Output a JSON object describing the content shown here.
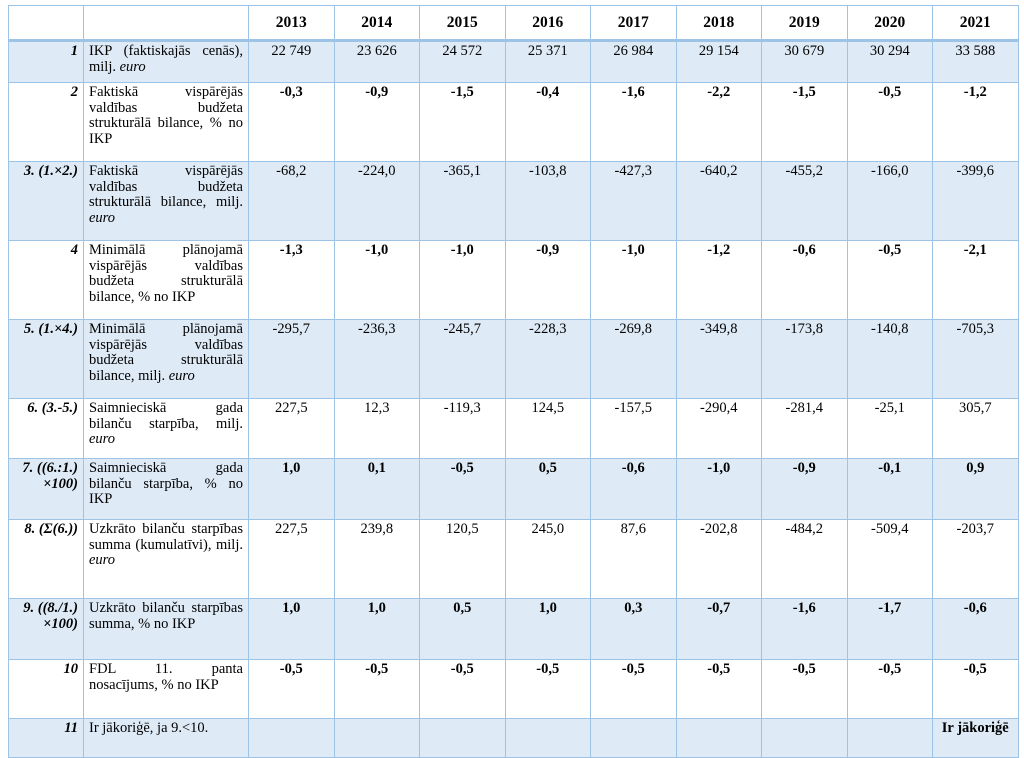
{
  "header": {
    "years": [
      "2013",
      "2014",
      "2015",
      "2016",
      "2017",
      "2018",
      "2019",
      "2020",
      "2021"
    ]
  },
  "rows": [
    {
      "num": "1",
      "desc": "IKP (faktiskajās cenās), milj. ",
      "unit": "euro",
      "bold": false,
      "values": [
        "22 749",
        "23 626",
        "24 572",
        "25 371",
        "26 984",
        "29 154",
        "30 679",
        "30 294",
        "33 588"
      ]
    },
    {
      "num": "2",
      "desc": "Faktiskā vispārējās valdības budžeta strukturālā bilance, % no IKP",
      "unit": "",
      "bold": true,
      "values": [
        "-0,3",
        "-0,9",
        "-1,5",
        "-0,4",
        "-1,6",
        "-2,2",
        "-1,5",
        "-0,5",
        "-1,2"
      ]
    },
    {
      "num": "3. (1.×2.)",
      "desc": "Faktiskā vispārējās valdības budžeta strukturālā bilance, milj. ",
      "unit": "euro",
      "bold": false,
      "values": [
        "-68,2",
        "-224,0",
        "-365,1",
        "-103,8",
        "-427,3",
        "-640,2",
        "-455,2",
        "-166,0",
        "-399,6"
      ]
    },
    {
      "num": "4",
      "desc": "Minimālā plānojamā vispārējās valdības budžeta strukturālā bilance, % no IKP",
      "unit": "",
      "bold": true,
      "values": [
        "-1,3",
        "-1,0",
        "-1,0",
        "-0,9",
        "-1,0",
        "-1,2",
        "-0,6",
        "-0,5",
        "-2,1"
      ]
    },
    {
      "num": "5. (1.×4.)",
      "desc": "Minimālā plānojamā vispārējās valdības budžeta strukturālā bilance, milj. ",
      "unit": "euro",
      "bold": false,
      "values": [
        "-295,7",
        "-236,3",
        "-245,7",
        "-228,3",
        "-269,8",
        "-349,8",
        "-173,8",
        "-140,8",
        "-705,3"
      ]
    },
    {
      "num": "6. (3.-5.)",
      "desc": "Saimnieciskā gada bilanču starpība, milj. ",
      "unit": "euro",
      "bold": false,
      "values": [
        "227,5",
        "12,3",
        "-119,3",
        "124,5",
        "-157,5",
        "-290,4",
        "-281,4",
        "-25,1",
        "305,7"
      ]
    },
    {
      "num": "7. ((6.:1.) ×100)",
      "desc": "Saimnieciskā gada bilanču starpība, % no IKP",
      "unit": "",
      "bold": true,
      "values": [
        "1,0",
        "0,1",
        "-0,5",
        "0,5",
        "-0,6",
        "-1,0",
        "-0,9",
        "-0,1",
        "0,9"
      ]
    },
    {
      "num": "8. (Σ(6.))",
      "desc": "Uzkrāto bilanču starpības summa (kumulatīvi), milj. ",
      "unit": "euro",
      "bold": false,
      "values": [
        "227,5",
        "239,8",
        "120,5",
        "245,0",
        "87,6",
        "-202,8",
        "-484,2",
        "-509,4",
        "-203,7"
      ]
    },
    {
      "num": "9. ((8./1.) ×100)",
      "desc": "Uzkrāto bilanču starpības summa, % no IKP",
      "unit": "",
      "bold": true,
      "values": [
        "1,0",
        "1,0",
        "0,5",
        "1,0",
        "0,3",
        "-0,7",
        "-1,6",
        "-1,7",
        "-0,6"
      ]
    },
    {
      "num": "10",
      "desc": "FDL 11. panta nosacījums, % no IKP",
      "unit": "",
      "bold": true,
      "values": [
        "-0,5",
        "-0,5",
        "-0,5",
        "-0,5",
        "-0,5",
        "-0,5",
        "-0,5",
        "-0,5",
        "-0,5"
      ]
    },
    {
      "num": "11",
      "desc": "Ir jākoriģē, ja 9.<10.",
      "unit": "",
      "bold": true,
      "values": [
        "",
        "",
        "",
        "",
        "",
        "",
        "",
        "",
        "Ir jākoriģē"
      ]
    }
  ]
}
